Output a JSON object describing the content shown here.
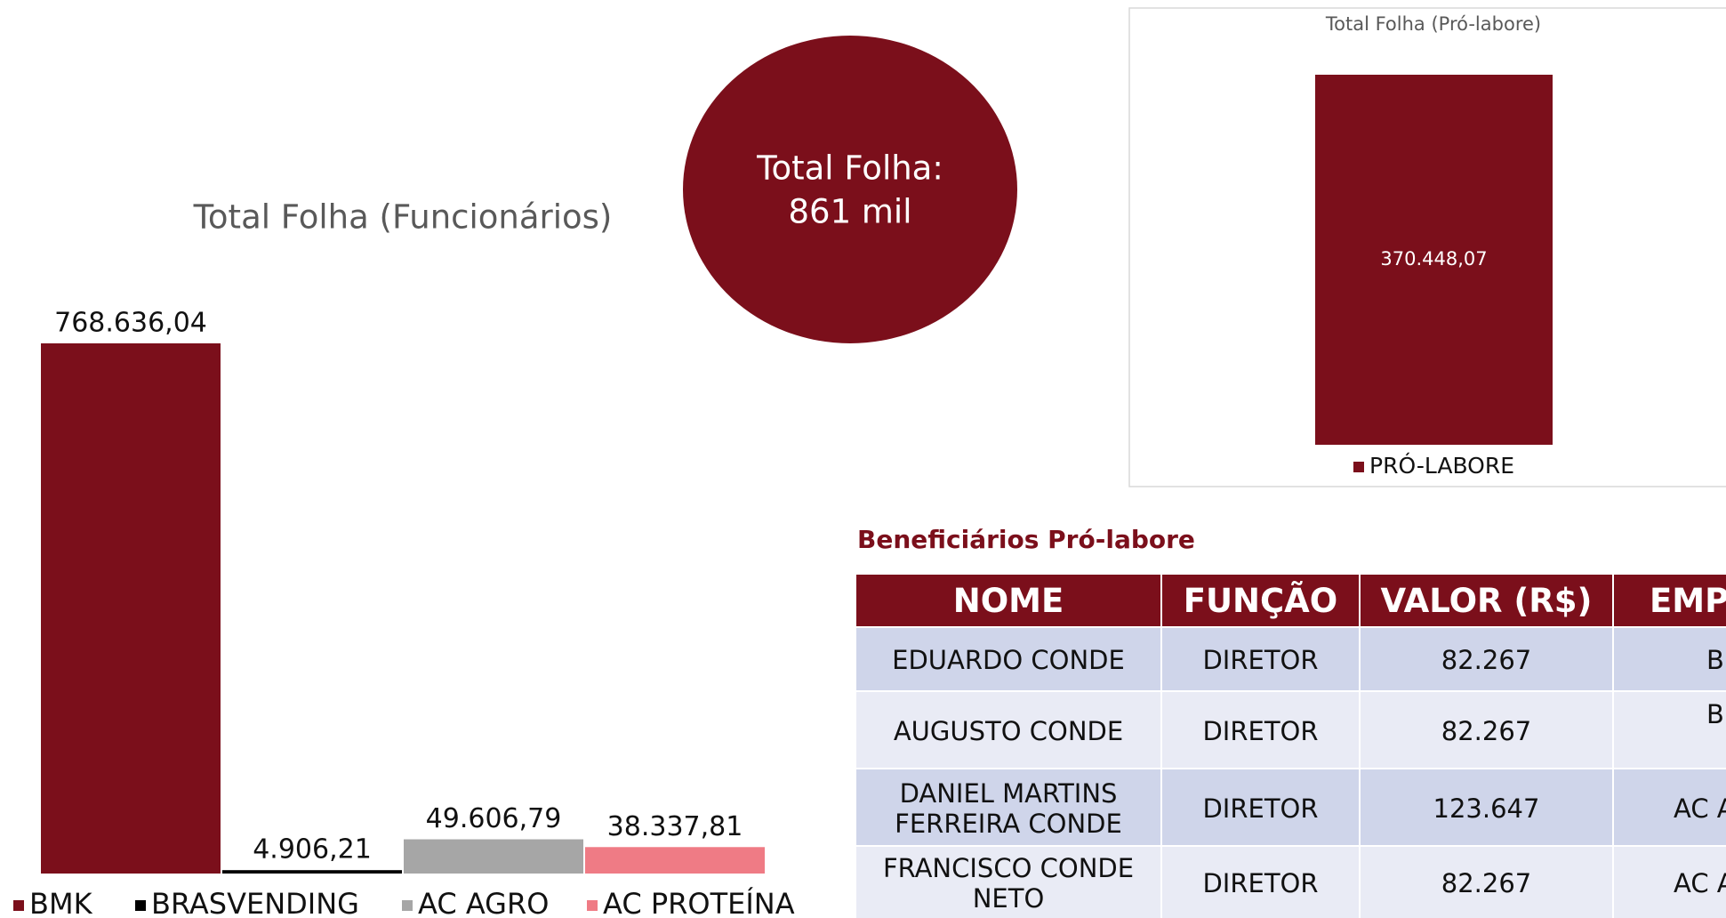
{
  "chart_data": [
    {
      "type": "bar",
      "title": "Total Folha (Funcionários)",
      "categories": [
        "BMK",
        "BRASVENDING",
        "AC AGRO",
        "AC PROTEÍNA"
      ],
      "values": [
        768636.04,
        4906.21,
        49606.79,
        38337.81
      ],
      "value_labels": [
        "768.636,04",
        "4.906,21",
        "49.606,79",
        "38.337,81"
      ],
      "colors": [
        "#7b0f1b",
        "#000000",
        "#a6a6a6",
        "#ef7b85"
      ],
      "legend": "bottom"
    },
    {
      "type": "bar",
      "title": "Total Folha (Pró-labore)",
      "categories": [
        "PRÓ-LABORE"
      ],
      "values": [
        370448.07
      ],
      "value_labels": [
        "370.448,07"
      ],
      "colors": [
        "#7b0f1b"
      ],
      "legend": "bottom"
    }
  ],
  "callout": {
    "lines": [
      "Total Folha:",
      "861 mil"
    ]
  },
  "table": {
    "title": "Beneficiários Pró-labore",
    "header": [
      "NOME",
      "FUNÇÃO",
      "VALOR (R$)",
      "EMP"
    ],
    "rows": [
      [
        "EDUARDO CONDE",
        "DIRETOR",
        "82.267",
        "B"
      ],
      [
        "AUGUSTO CONDE",
        "DIRETOR",
        "82.267",
        "B"
      ],
      [
        "DANIEL MARTINS FERREIRA CONDE",
        "DIRETOR",
        "123.647",
        "AC A"
      ],
      [
        "FRANCISCO CONDE NETO",
        "DIRETOR",
        "82.267",
        "AC A"
      ]
    ]
  }
}
